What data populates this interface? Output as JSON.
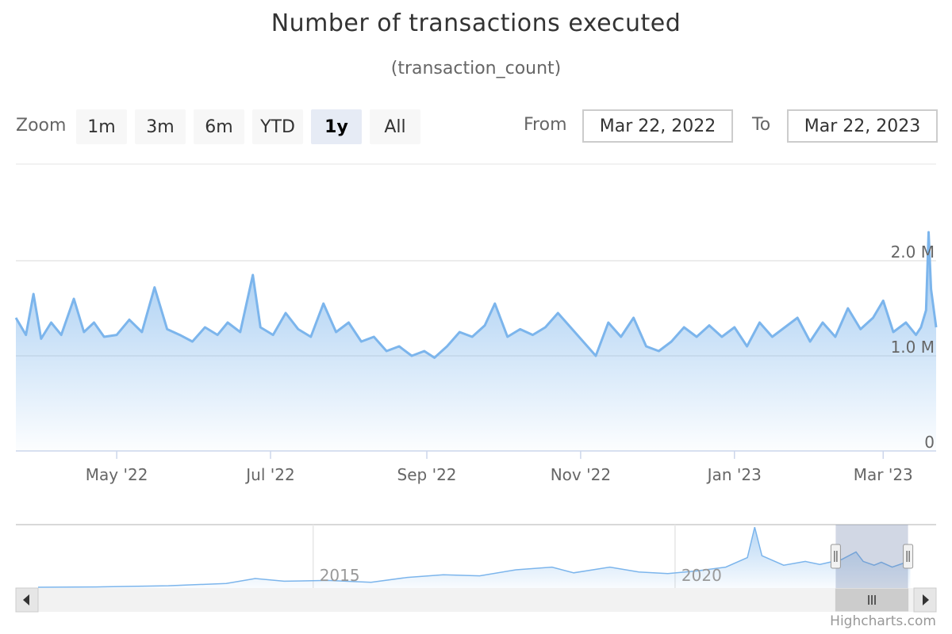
{
  "title": "Number of transactions executed",
  "subtitle": "(transaction_count)",
  "range_selector": {
    "zoom_label": "Zoom",
    "buttons": [
      "1m",
      "3m",
      "6m",
      "YTD",
      "1y",
      "All"
    ],
    "selected": "1y",
    "from_label": "From",
    "from_value": "Mar 22, 2022",
    "to_label": "To",
    "to_value": "Mar 22, 2023"
  },
  "credit": "Highcharts.com",
  "colors": {
    "series": "#7cb5ec",
    "grid": "#e6e6e6",
    "navigator_mask": "#ccd6eb"
  },
  "chart_data": {
    "type": "area",
    "title": "Number of transactions executed",
    "subtitle": "(transaction_count)",
    "x_range": [
      "2022-03-22",
      "2023-03-22"
    ],
    "y_axis": {
      "ticks": [
        "0",
        "1.0 M",
        "2.0 M"
      ],
      "tick_values": [
        0,
        1000000,
        2000000
      ],
      "ylim": [
        0,
        2000000
      ],
      "position": "right"
    },
    "x_ticks": [
      "May '22",
      "Jul '22",
      "Sep '22",
      "Nov '22",
      "Jan '23",
      "Mar '23"
    ],
    "x_tick_dates": [
      "2022-05-01",
      "2022-07-01",
      "2022-09-01",
      "2022-11-01",
      "2023-01-01",
      "2023-03-01"
    ],
    "series": [
      {
        "values_millions": [
          [
            "2022-03-22",
            1.4
          ],
          [
            "2022-03-26",
            1.22
          ],
          [
            "2022-03-29",
            1.65
          ],
          [
            "2022-04-01",
            1.18
          ],
          [
            "2022-04-05",
            1.35
          ],
          [
            "2022-04-09",
            1.22
          ],
          [
            "2022-04-14",
            1.6
          ],
          [
            "2022-04-18",
            1.25
          ],
          [
            "2022-04-22",
            1.35
          ],
          [
            "2022-04-26",
            1.2
          ],
          [
            "2022-05-01",
            1.22
          ],
          [
            "2022-05-06",
            1.38
          ],
          [
            "2022-05-11",
            1.25
          ],
          [
            "2022-05-16",
            1.72
          ],
          [
            "2022-05-21",
            1.28
          ],
          [
            "2022-05-26",
            1.22
          ],
          [
            "2022-05-31",
            1.15
          ],
          [
            "2022-06-05",
            1.3
          ],
          [
            "2022-06-10",
            1.22
          ],
          [
            "2022-06-14",
            1.35
          ],
          [
            "2022-06-19",
            1.25
          ],
          [
            "2022-06-24",
            1.85
          ],
          [
            "2022-06-27",
            1.3
          ],
          [
            "2022-07-02",
            1.22
          ],
          [
            "2022-07-07",
            1.45
          ],
          [
            "2022-07-12",
            1.28
          ],
          [
            "2022-07-17",
            1.2
          ],
          [
            "2022-07-22",
            1.55
          ],
          [
            "2022-07-27",
            1.25
          ],
          [
            "2022-08-01",
            1.35
          ],
          [
            "2022-08-06",
            1.15
          ],
          [
            "2022-08-11",
            1.2
          ],
          [
            "2022-08-16",
            1.05
          ],
          [
            "2022-08-21",
            1.1
          ],
          [
            "2022-08-26",
            1.0
          ],
          [
            "2022-08-31",
            1.05
          ],
          [
            "2022-09-04",
            0.98
          ],
          [
            "2022-09-09",
            1.1
          ],
          [
            "2022-09-14",
            1.25
          ],
          [
            "2022-09-19",
            1.2
          ],
          [
            "2022-09-24",
            1.32
          ],
          [
            "2022-09-28",
            1.55
          ],
          [
            "2022-10-03",
            1.2
          ],
          [
            "2022-10-08",
            1.28
          ],
          [
            "2022-10-13",
            1.22
          ],
          [
            "2022-10-18",
            1.3
          ],
          [
            "2022-10-23",
            1.45
          ],
          [
            "2022-10-28",
            1.3
          ],
          [
            "2022-11-02",
            1.15
          ],
          [
            "2022-11-07",
            1.0
          ],
          [
            "2022-11-12",
            1.35
          ],
          [
            "2022-11-17",
            1.2
          ],
          [
            "2022-11-22",
            1.4
          ],
          [
            "2022-11-27",
            1.1
          ],
          [
            "2022-12-02",
            1.05
          ],
          [
            "2022-12-07",
            1.15
          ],
          [
            "2022-12-12",
            1.3
          ],
          [
            "2022-12-17",
            1.2
          ],
          [
            "2022-12-22",
            1.32
          ],
          [
            "2022-12-27",
            1.2
          ],
          [
            "2023-01-01",
            1.3
          ],
          [
            "2023-01-06",
            1.1
          ],
          [
            "2023-01-11",
            1.35
          ],
          [
            "2023-01-16",
            1.2
          ],
          [
            "2023-01-21",
            1.3
          ],
          [
            "2023-01-26",
            1.4
          ],
          [
            "2023-01-31",
            1.15
          ],
          [
            "2023-02-05",
            1.35
          ],
          [
            "2023-02-10",
            1.2
          ],
          [
            "2023-02-15",
            1.5
          ],
          [
            "2023-02-20",
            1.28
          ],
          [
            "2023-02-25",
            1.4
          ],
          [
            "2023-03-01",
            1.58
          ],
          [
            "2023-03-05",
            1.25
          ],
          [
            "2023-03-10",
            1.35
          ],
          [
            "2023-03-14",
            1.22
          ],
          [
            "2023-03-16",
            1.3
          ],
          [
            "2023-03-18",
            1.48
          ],
          [
            "2023-03-19",
            2.3
          ],
          [
            "2023-03-20",
            1.7
          ],
          [
            "2023-03-21",
            1.5
          ],
          [
            "2023-03-22",
            1.3
          ]
        ]
      }
    ],
    "navigator": {
      "x_labels": [
        "2015",
        "2020"
      ],
      "x_label_years": [
        2015,
        2020
      ],
      "x_range_years": [
        2011.2,
        2023.3
      ],
      "selected_range": [
        "2022-03-22",
        "2023-03-22"
      ],
      "values_millions": [
        [
          2011.2,
          0.02
        ],
        [
          2012.0,
          0.03
        ],
        [
          2013.0,
          0.06
        ],
        [
          2013.8,
          0.12
        ],
        [
          2014.2,
          0.25
        ],
        [
          2014.6,
          0.18
        ],
        [
          2015.2,
          0.2
        ],
        [
          2015.8,
          0.15
        ],
        [
          2016.3,
          0.28
        ],
        [
          2016.8,
          0.35
        ],
        [
          2017.3,
          0.32
        ],
        [
          2017.8,
          0.48
        ],
        [
          2018.3,
          0.55
        ],
        [
          2018.6,
          0.4
        ],
        [
          2019.1,
          0.55
        ],
        [
          2019.5,
          0.42
        ],
        [
          2019.9,
          0.38
        ],
        [
          2020.3,
          0.45
        ],
        [
          2020.7,
          0.55
        ],
        [
          2021.0,
          0.8
        ],
        [
          2021.1,
          1.6
        ],
        [
          2021.2,
          0.85
        ],
        [
          2021.5,
          0.6
        ],
        [
          2021.8,
          0.7
        ],
        [
          2022.0,
          0.62
        ],
        [
          2022.3,
          0.75
        ],
        [
          2022.5,
          0.95
        ],
        [
          2022.6,
          0.7
        ],
        [
          2022.75,
          0.6
        ],
        [
          2022.85,
          0.68
        ],
        [
          2023.0,
          0.55
        ],
        [
          2023.15,
          0.65
        ],
        [
          2023.25,
          0.8
        ]
      ]
    }
  }
}
